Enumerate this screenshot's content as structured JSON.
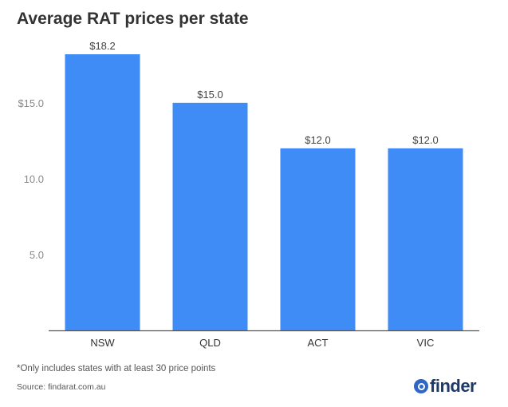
{
  "title": "Average RAT prices per state",
  "footnote": "*Only includes states with at least 30 price points",
  "source": "Source: findarat.com.au",
  "logo_text": "finder",
  "colors": {
    "bar": "#3f8cf7",
    "axis": "#555555",
    "tick_text": "#888888",
    "label_text": "#444444"
  },
  "chart_data": {
    "type": "bar",
    "title": "Average RAT prices per state",
    "categories": [
      "NSW",
      "QLD",
      "ACT",
      "VIC"
    ],
    "values": [
      18.2,
      15.0,
      12.0,
      12.0
    ],
    "data_labels": [
      "$18.2",
      "$15.0",
      "$12.0",
      "$12.0"
    ],
    "ylim": [
      0,
      18.2
    ],
    "yticks": [
      5,
      10,
      15
    ],
    "ytick_labels": [
      "5.0",
      "10.0",
      "$15.0"
    ],
    "xlabel": "",
    "ylabel": "",
    "grid": false
  }
}
